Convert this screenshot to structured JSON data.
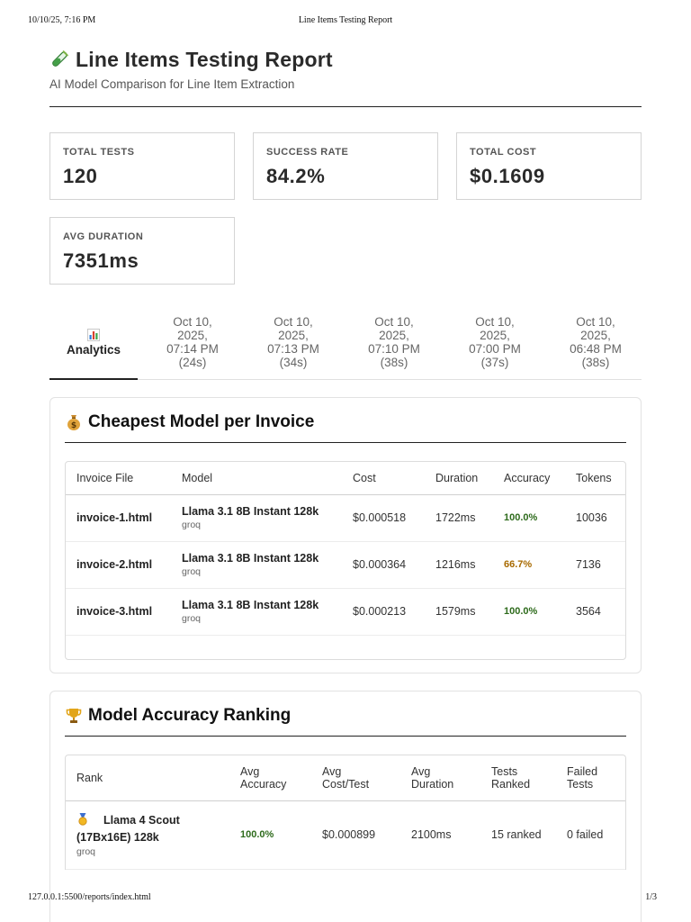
{
  "print": {
    "datetime": "10/10/25, 7:16 PM",
    "doc_title": "Line Items Testing Report",
    "url": "127.0.0.1:5500/reports/index.html",
    "page": "1/3"
  },
  "header": {
    "icon": "test-tube-icon",
    "title": "Line Items Testing Report",
    "subtitle": "AI Model Comparison for Line Item Extraction"
  },
  "stats": [
    {
      "label": "TOTAL TESTS",
      "value": "120"
    },
    {
      "label": "SUCCESS RATE",
      "value": "84.2%"
    },
    {
      "label": "TOTAL COST",
      "value": "$0.1609"
    },
    {
      "label": "AVG DURATION",
      "value": "7351ms"
    }
  ],
  "tabs": [
    {
      "icon": "bar-chart-icon",
      "label": "Analytics",
      "active": true
    },
    {
      "lines": [
        "Oct 10,",
        "2025,",
        "07:14 PM",
        "(24s)"
      ]
    },
    {
      "lines": [
        "Oct 10,",
        "2025,",
        "07:13 PM",
        "(34s)"
      ]
    },
    {
      "lines": [
        "Oct 10,",
        "2025,",
        "07:10 PM",
        "(38s)"
      ]
    },
    {
      "lines": [
        "Oct 10,",
        "2025,",
        "07:00 PM",
        "(37s)"
      ]
    },
    {
      "lines": [
        "Oct 10,",
        "2025,",
        "06:48 PM",
        "(38s)"
      ]
    }
  ],
  "cheapest": {
    "icon": "money-bag-icon",
    "title": "Cheapest Model per Invoice",
    "columns": [
      "Invoice File",
      "Model",
      "Cost",
      "Duration",
      "Accuracy",
      "Tokens"
    ],
    "rows": [
      {
        "file": "invoice-1.html",
        "model": "Llama 3.1 8B Instant 128k",
        "provider": "groq",
        "cost": "$0.000518",
        "duration": "1722ms",
        "accuracy": "100.0%",
        "accuracy_color": "#2e6b1c",
        "tokens": "10036"
      },
      {
        "file": "invoice-2.html",
        "model": "Llama 3.1 8B Instant 128k",
        "provider": "groq",
        "cost": "$0.000364",
        "duration": "1216ms",
        "accuracy": "66.7%",
        "accuracy_color": "#a86a00",
        "tokens": "7136"
      },
      {
        "file": "invoice-3.html",
        "model": "Llama 3.1 8B Instant 128k",
        "provider": "groq",
        "cost": "$0.000213",
        "duration": "1579ms",
        "accuracy": "100.0%",
        "accuracy_color": "#2e6b1c",
        "tokens": "3564"
      }
    ]
  },
  "ranking": {
    "icon": "trophy-icon",
    "title": "Model Accuracy Ranking",
    "columns": [
      [
        "Rank"
      ],
      [
        "Avg",
        "Accuracy"
      ],
      [
        "Avg",
        "Cost/Test"
      ],
      [
        "Avg",
        "Duration"
      ],
      [
        "Tests",
        "Ranked"
      ],
      [
        "Failed",
        "Tests"
      ]
    ],
    "rows": [
      {
        "medal": "gold-medal-icon",
        "model_line1": "Llama 4 Scout",
        "model_line2": "(17Bx16E) 128k",
        "provider": "groq",
        "accuracy": "100.0%",
        "cost": "$0.000899",
        "duration": "2100ms",
        "ranked": "15 ranked",
        "failed": "0 failed"
      }
    ]
  }
}
